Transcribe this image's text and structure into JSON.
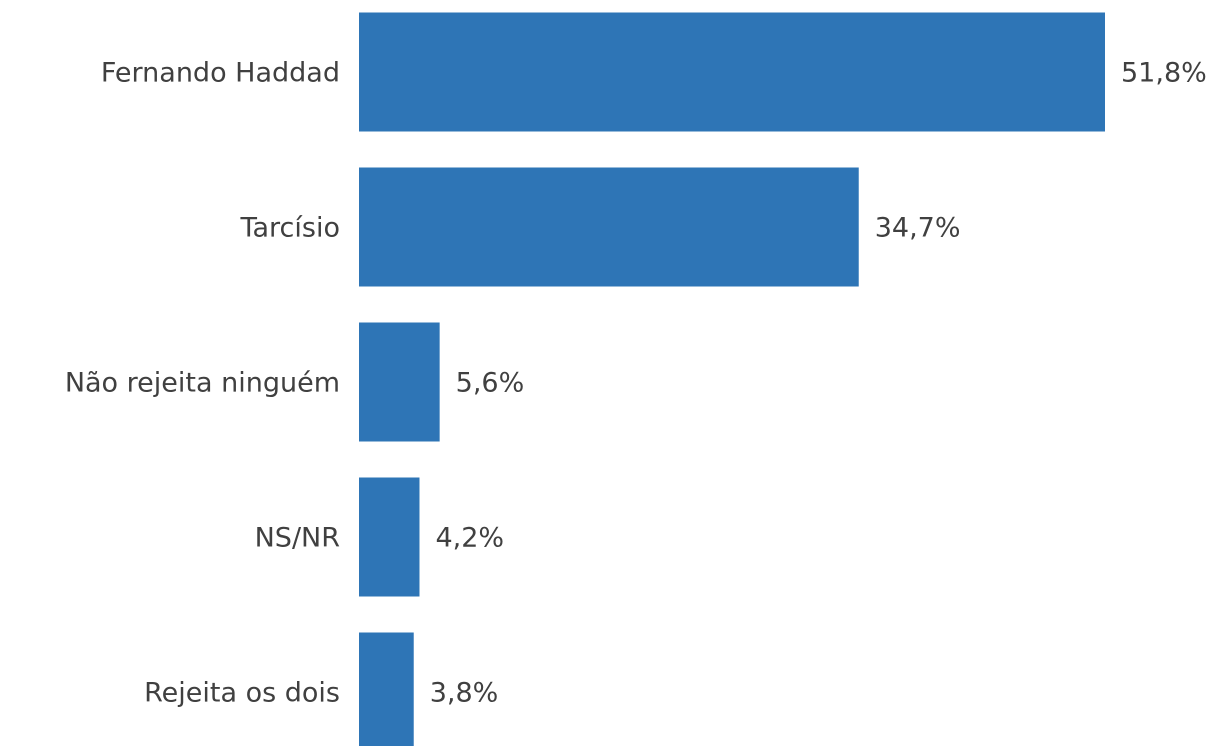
{
  "chart_data": {
    "type": "bar",
    "orientation": "horizontal",
    "categories": [
      "Fernando Haddad",
      "Tarcísio",
      "Não rejeita ninguém",
      "NS/NR",
      "Rejeita os dois"
    ],
    "values": [
      51.8,
      34.7,
      5.6,
      4.2,
      3.8
    ],
    "value_labels": [
      "51,8%",
      "34,7%",
      "5,6%",
      "4,2%",
      "3,8%"
    ],
    "color": "#2e75b6"
  }
}
